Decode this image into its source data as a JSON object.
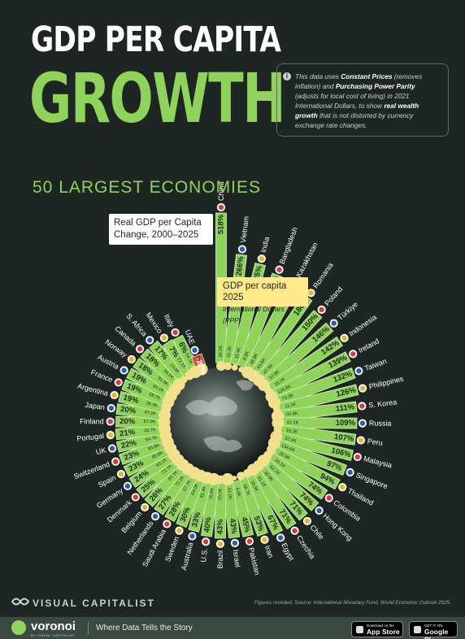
{
  "header": {
    "title_line1": "GDP PER CAPITA",
    "title_line2": "GROWTH",
    "subtitle": "50 LARGEST ECONOMIES"
  },
  "note": {
    "p1": "This data uses",
    "b1": "Constant Prices",
    "p2": "(removes inflation) and",
    "b2": "Purchasing Power Parity",
    "p3": "(adjusts for local cost of living) in 2021 International Dollars, to show",
    "b3": "real wealth growth",
    "p4": "that is not distorted by currency exchange rate changes."
  },
  "legend": {
    "growth_label": "Real GDP per Capita Change, 2000–2025",
    "gdp_label": "GDP per capita 2025",
    "gdp_sub": "International Dollars (PPP)"
  },
  "colors": {
    "background": "#1e2624",
    "bar": "#8fd35a",
    "bar_border": "#d6f0bd",
    "negative": "#e0453c",
    "bubble": "#f2e18c",
    "text": "#ffffff",
    "value_text": "#1e2624"
  },
  "chart_data": {
    "type": "bar",
    "layout": "radial",
    "title": "GDP PER CAPITA GROWTH",
    "subtitle": "50 LARGEST ECONOMIES",
    "series": [
      {
        "name": "Real GDP per Capita Change, 2000–2025",
        "unit": "%"
      },
      {
        "name": "GDP per capita 2025",
        "unit": "International Dollars (PPP)"
      }
    ],
    "countries": [
      {
        "country": "China",
        "growth": 518,
        "gdp": "25.0K"
      },
      {
        "country": "Vietnam",
        "growth": 266,
        "gdp": "15.2K"
      },
      {
        "country": "India",
        "growth": 235,
        "gdp": "10.4K"
      },
      {
        "country": "Bangladesh",
        "growth": 208,
        "gdp": "8.8K"
      },
      {
        "country": "Kazakhstan",
        "growth": 183,
        "gdp": "38.9K"
      },
      {
        "country": "Romania",
        "growth": 180,
        "gdp": "43.9K"
      },
      {
        "country": "Poland",
        "growth": 150,
        "gdp": "47.5K"
      },
      {
        "country": "Türkiye",
        "growth": 146,
        "gdp": "37.8K"
      },
      {
        "country": "Indonesia",
        "growth": 142,
        "gdp": "15.1K"
      },
      {
        "country": "Ireland",
        "growth": 139,
        "gdp": "126.8K"
      },
      {
        "country": "Taiwan",
        "growth": 132,
        "gdp": "73.0K"
      },
      {
        "country": "Philippines",
        "growth": 126,
        "gdp": "11.1K"
      },
      {
        "country": "S. Korea",
        "growth": 111,
        "gdp": "55.8K"
      },
      {
        "country": "Russia",
        "growth": 109,
        "gdp": "42.1K"
      },
      {
        "country": "Peru",
        "growth": 107,
        "gdp": "16.3K"
      },
      {
        "country": "Malaysia",
        "growth": 106,
        "gdp": "37.4K"
      },
      {
        "country": "Singapore",
        "growth": 97,
        "gdp": "134.6K"
      },
      {
        "country": "Thailand",
        "growth": 94,
        "gdp": "22.8K"
      },
      {
        "country": "Colombia",
        "growth": 74,
        "gdp": "20.1K"
      },
      {
        "country": "Hong Kong",
        "growth": 74,
        "gdp": "63.7K"
      },
      {
        "country": "Chile",
        "growth": 71,
        "gdp": "30.9K"
      },
      {
        "country": "Czechia",
        "growth": 71,
        "gdp": "51.1K"
      },
      {
        "country": "Egypt",
        "growth": 67,
        "gdp": "18.5K"
      },
      {
        "country": "Iran",
        "growth": 53,
        "gdp": "18.7K"
      },
      {
        "country": "Pakistan",
        "growth": 45,
        "gdp": "6.0K"
      },
      {
        "country": "Israel",
        "growth": 43,
        "gdp": "52.0K"
      },
      {
        "country": "Brazil",
        "growth": 43,
        "gdp": "20.0K"
      },
      {
        "country": "U.S.",
        "growth": 40,
        "gdp": "76.8K"
      },
      {
        "country": "Australia",
        "growth": 33,
        "gdp": "61.9K"
      },
      {
        "country": "Sweden",
        "growth": 30,
        "gdp": "64.0K"
      },
      {
        "country": "Saudi Arabia",
        "growth": 28,
        "gdp": "57.7K"
      },
      {
        "country": "Netherlands",
        "growth": 27,
        "gdp": "72.1K"
      },
      {
        "country": "Belgium",
        "growth": 26,
        "gdp": "65.1K"
      },
      {
        "country": "Denmark",
        "growth": 25,
        "gdp": "72.7K"
      },
      {
        "country": "Germany",
        "growth": 24,
        "gdp": "63.1K"
      },
      {
        "country": "Spain",
        "growth": 23,
        "gdp": "48.8K"
      },
      {
        "country": "Switzerland",
        "growth": 23,
        "gdp": "83.8K"
      },
      {
        "country": "UK",
        "growth": 22,
        "gdp": "54.7K"
      },
      {
        "country": "Portugal",
        "growth": 21,
        "gdp": "42.7K"
      },
      {
        "country": "Finland",
        "growth": 20,
        "gdp": "57.0K"
      },
      {
        "country": "Japan",
        "growth": 20,
        "gdp": "47.0K"
      },
      {
        "country": "Argentina",
        "growth": 19,
        "gdp": "26.9K"
      },
      {
        "country": "France",
        "growth": 19,
        "gdp": "58.7K"
      },
      {
        "country": "Austria",
        "growth": 19,
        "gdp": "64.2K"
      },
      {
        "country": "Norway",
        "growth": 18,
        "gdp": "91.0K"
      },
      {
        "country": "Canada",
        "growth": 18,
        "gdp": "58.2K"
      },
      {
        "country": "S. Africa",
        "growth": 17,
        "gdp": "13.9K"
      },
      {
        "country": "Mexico",
        "growth": 7,
        "gdp": "22.1K"
      },
      {
        "country": "Italy",
        "growth": 6,
        "gdp": "54.1K"
      },
      {
        "country": "UAE",
        "growth": -27,
        "gdp": "72.4K"
      }
    ]
  },
  "footer": {
    "brand": "VISUAL CAPITALIST",
    "source": "Figures rounded. Source: International Monetary Fund, World Economic Outlook 2025",
    "voronoi": "voronoi",
    "voronoi_sub": "BY VISUAL CAPITALIST",
    "tagline": "Where Data Tells the Story",
    "appstore_small": "Download on the",
    "appstore_big": "App Store",
    "googleplay_small": "GET IT ON",
    "googleplay_big": "Google Play"
  }
}
